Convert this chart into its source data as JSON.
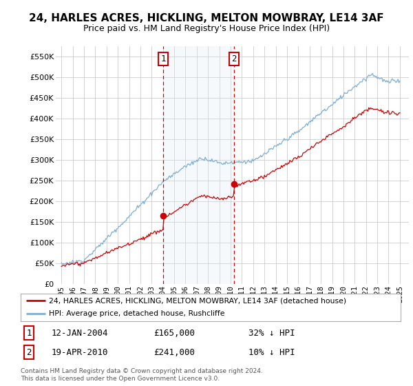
{
  "title": "24, HARLES ACRES, HICKLING, MELTON MOWBRAY, LE14 3AF",
  "subtitle": "Price paid vs. HM Land Registry's House Price Index (HPI)",
  "ylabel_ticks": [
    "£0",
    "£50K",
    "£100K",
    "£150K",
    "£200K",
    "£250K",
    "£300K",
    "£350K",
    "£400K",
    "£450K",
    "£500K",
    "£550K"
  ],
  "ytick_values": [
    0,
    50000,
    100000,
    150000,
    200000,
    250000,
    300000,
    350000,
    400000,
    450000,
    500000,
    550000
  ],
  "ylim": [
    0,
    575000
  ],
  "sale1_date": "12-JAN-2004",
  "sale1_price": 165000,
  "sale1_label": "32% ↓ HPI",
  "sale1_x": 2004.04,
  "sale2_date": "19-APR-2010",
  "sale2_price": 241000,
  "sale2_label": "10% ↓ HPI",
  "sale2_x": 2010.3,
  "legend_line1": "24, HARLES ACRES, HICKLING, MELTON MOWBRAY, LE14 3AF (detached house)",
  "legend_line2": "HPI: Average price, detached house, Rushcliffe",
  "footnote1": "Contains HM Land Registry data © Crown copyright and database right 2024.",
  "footnote2": "This data is licensed under the Open Government Licence v3.0.",
  "red_color": "#cc0000",
  "blue_color": "#7aadd4",
  "light_blue_bg": "#deeaf5",
  "grid_color": "#cccccc",
  "background_color": "#ffffff"
}
